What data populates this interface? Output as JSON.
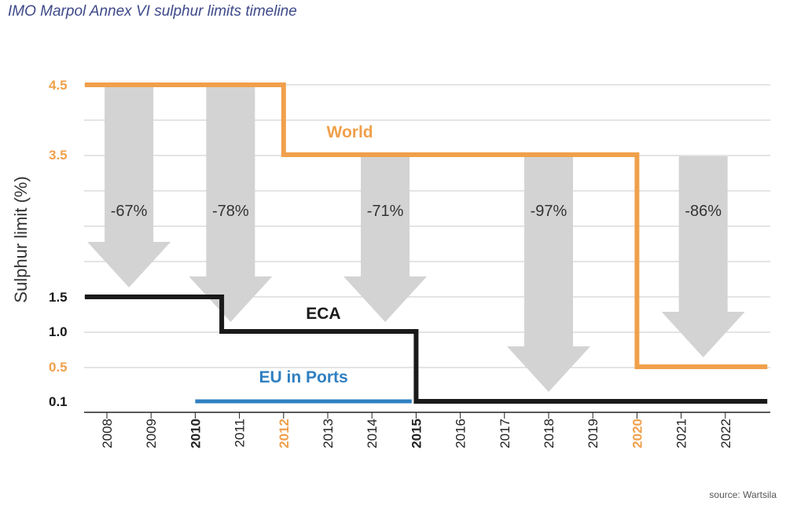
{
  "title": "IMO Marpol Annex VI sulphur limits timeline",
  "source": "source: Wartsila",
  "colors": {
    "world": "#f0a04b",
    "eca": "#1a1a1a",
    "eu": "#2f7fc0",
    "arrow": "#d3d3d3",
    "grid": "#c8c8c8"
  },
  "chart_data": {
    "type": "line",
    "title": "IMO Marpol Annex VI sulphur limits timeline",
    "xlabel": "",
    "ylabel": "Sulphur limit (%)",
    "x_categories": [
      "2008",
      "2009",
      "2010",
      "2011",
      "2012",
      "2013",
      "2014",
      "2015",
      "2016",
      "2017",
      "2018",
      "2019",
      "2020",
      "2021",
      "2022"
    ],
    "x_bold": [
      "2010",
      "2012",
      "2015",
      "2020"
    ],
    "x_colors": {
      "2012": "#f0a04b",
      "2020": "#f0a04b"
    },
    "y_ticks": [
      {
        "label": "4.5",
        "value": 4.5,
        "color": "#f0a04b"
      },
      {
        "label": "3.5",
        "value": 3.5,
        "color": "#f0a04b"
      },
      {
        "label": "1.5",
        "value": 1.5,
        "color": "#1a1a1a"
      },
      {
        "label": "1.0",
        "value": 1.0,
        "color": "#1a1a1a"
      },
      {
        "label": "0.5",
        "value": 0.5,
        "color": "#f0a04b"
      },
      {
        "label": "0.1",
        "value": 0.1,
        "color": "#1a1a1a"
      }
    ],
    "series": [
      {
        "name": "World",
        "color": "#f0a04b",
        "points": [
          [
            2007.5,
            4.5
          ],
          [
            2012,
            4.5
          ],
          [
            2012,
            3.5
          ],
          [
            2020,
            3.5
          ],
          [
            2020,
            0.5
          ],
          [
            2022.95,
            0.5
          ]
        ]
      },
      {
        "name": "ECA",
        "color": "#1a1a1a",
        "points": [
          [
            2007.5,
            1.5
          ],
          [
            2010.6,
            1.5
          ],
          [
            2010.6,
            1.0
          ],
          [
            2015,
            1.0
          ],
          [
            2015,
            0.1
          ],
          [
            2022.95,
            0.1
          ]
        ]
      },
      {
        "name": "EU in Ports",
        "color": "#2f7fc0",
        "points": [
          [
            2010,
            0.1
          ],
          [
            2014.9,
            0.1
          ]
        ]
      }
    ],
    "series_labels": [
      {
        "name": "World",
        "x": 2013.5,
        "y": 3.75
      },
      {
        "name": "ECA",
        "x": 2012.9,
        "y": 1.18
      },
      {
        "name": "EU in Ports",
        "x": 2012.45,
        "y": 0.32
      }
    ],
    "reductions": [
      {
        "label": "-67%",
        "x": 2008.5,
        "from": 4.5,
        "to": 1.5
      },
      {
        "label": "-78%",
        "x": 2010.8,
        "from": 4.5,
        "to": 1.0
      },
      {
        "label": "-71%",
        "x": 2014.3,
        "from": 3.5,
        "to": 1.0
      },
      {
        "label": "-97%",
        "x": 2018.0,
        "from": 3.5,
        "to": 0.1
      },
      {
        "label": "-86%",
        "x": 2021.5,
        "from": 3.5,
        "to": 0.5
      }
    ]
  }
}
